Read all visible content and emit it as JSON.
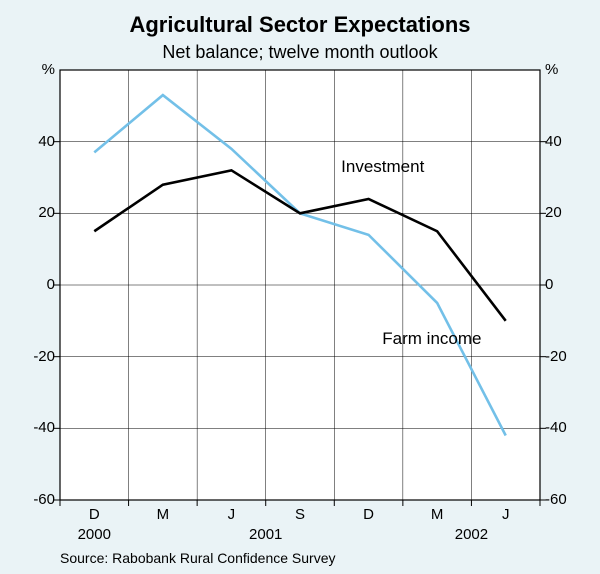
{
  "chart": {
    "type": "line",
    "title": "Agricultural Sector Expectations",
    "title_fontsize": 22,
    "title_fontweight": "bold",
    "subtitle": "Net balance; twelve month outlook",
    "subtitle_fontsize": 18,
    "background_color": "#eaf3f6",
    "plot_background_color": "#ffffff",
    "plot_border_color": "#000000",
    "plot_border_width": 1.2,
    "grid_color": "#000000",
    "grid_width": 0.5,
    "x": {
      "categories": [
        "D",
        "M",
        "J",
        "S",
        "D",
        "M",
        "J"
      ],
      "group_labels": [
        {
          "label": "2000",
          "span": [
            0,
            0
          ]
        },
        {
          "label": "2001",
          "span": [
            1,
            4
          ]
        },
        {
          "label": "2002",
          "span": [
            5,
            6
          ]
        }
      ],
      "tick_length": 6
    },
    "y": {
      "min": -60,
      "max": 60,
      "tick_step": 20,
      "ticks": [
        -60,
        -40,
        -20,
        0,
        20,
        40
      ],
      "unit_label": "%",
      "unit_fontsize": 15,
      "dual_axis": true,
      "tick_length": 6
    },
    "series": [
      {
        "name": "Investment",
        "color": "#000000",
        "line_width": 2.6,
        "values": [
          15,
          28,
          32,
          20,
          24,
          15,
          -10
        ],
        "inline_label_pos": {
          "x_index": 3.6,
          "y_value": 33
        }
      },
      {
        "name": "Farm income",
        "color": "#73c0e8",
        "line_width": 2.6,
        "values": [
          37,
          53,
          38,
          20,
          14,
          -5,
          -42
        ],
        "inline_label_pos": {
          "x_index": 4.2,
          "y_value": -15
        }
      }
    ],
    "source_text": "Source: Rabobank Rural Confidence Survey",
    "source_fontsize": 14
  }
}
